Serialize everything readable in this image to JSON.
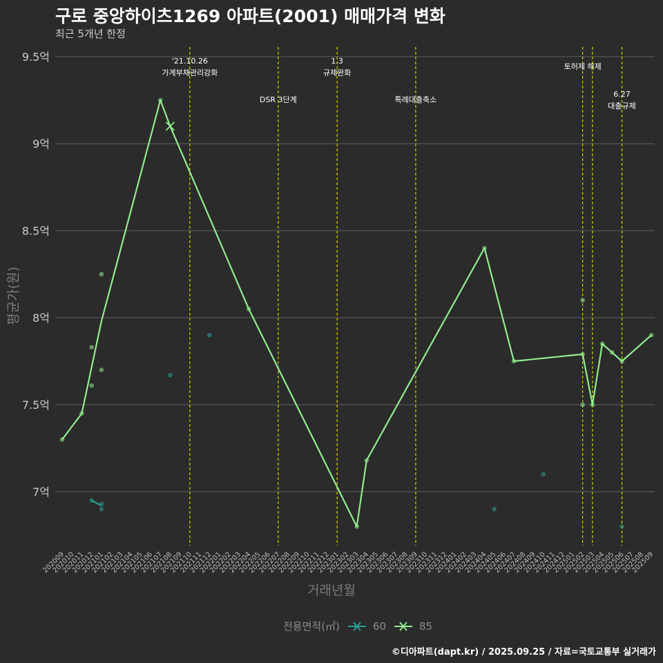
{
  "chart_data": {
    "type": "line",
    "title": "구로 중앙하이츠1269 아파트(2001) 매매가격 변화",
    "subtitle": "최근 5개년 한정",
    "xlabel": "거래년월",
    "ylabel": "평균가(원)",
    "caption": "©디아파트(dapt.kr) / 2025.09.25 / 자료=국토교통부 실거래가",
    "legend_title": "전용면적(㎡)",
    "ylim": [
      6.8,
      9.5
    ],
    "y_ticks": [
      7,
      7.5,
      8,
      8.5,
      9,
      9.5
    ],
    "y_tick_labels": [
      "7억",
      "7.5억",
      "8억",
      "8.5억",
      "9억",
      "9.5억"
    ],
    "x_categories": [
      "202009",
      "202010",
      "202011",
      "202012",
      "202101",
      "202102",
      "202103",
      "202104",
      "202105",
      "202106",
      "202107",
      "202108",
      "202109",
      "202110",
      "202111",
      "202112",
      "202201",
      "202202",
      "202203",
      "202204",
      "202205",
      "202206",
      "202207",
      "202208",
      "202209",
      "202210",
      "202211",
      "202212",
      "202301",
      "202302",
      "202303",
      "202304",
      "202305",
      "202306",
      "202307",
      "202308",
      "202309",
      "202310",
      "202311",
      "202312",
      "202401",
      "202402",
      "202403",
      "202404",
      "202405",
      "202406",
      "202407",
      "202408",
      "202409",
      "202410",
      "202411",
      "202412",
      "202501",
      "202502",
      "202503",
      "202504",
      "202505",
      "202506",
      "202507",
      "202508",
      "202509"
    ],
    "series": [
      {
        "name": "60",
        "color": "#2aa198",
        "line": [
          [
            "202012",
            6.95
          ],
          [
            "202101",
            6.92
          ]
        ],
        "points": [
          [
            "202012",
            6.95
          ],
          [
            "202101",
            6.93
          ],
          [
            "202101",
            6.9
          ],
          [
            "202108",
            7.67
          ],
          [
            "202112",
            7.9
          ],
          [
            "202405",
            6.9
          ],
          [
            "202410",
            7.1
          ],
          [
            "202506",
            6.8
          ]
        ]
      },
      {
        "name": "85",
        "color": "#90ee90",
        "line": [
          [
            "202009",
            7.3
          ],
          [
            "202011",
            7.45
          ],
          [
            "202101",
            7.98
          ],
          [
            "202107",
            9.25
          ],
          [
            "202108",
            9.1
          ],
          [
            "202204",
            8.05
          ],
          [
            "202303",
            6.8
          ],
          [
            "202304",
            7.18
          ],
          [
            "202404",
            8.4
          ],
          [
            "202407",
            7.75
          ],
          [
            "202502",
            7.79
          ],
          [
            "202503",
            7.5
          ],
          [
            "202504",
            7.85
          ],
          [
            "202505",
            7.8
          ],
          [
            "202506",
            7.75
          ],
          [
            "202509",
            7.9
          ]
        ],
        "points": [
          [
            "202009",
            7.3
          ],
          [
            "202011",
            7.45
          ],
          [
            "202012",
            7.83
          ],
          [
            "202012",
            7.61
          ],
          [
            "202101",
            8.25
          ],
          [
            "202101",
            7.7
          ],
          [
            "202107",
            9.25
          ],
          [
            "202204",
            8.05
          ],
          [
            "202303",
            6.8
          ],
          [
            "202304",
            7.18
          ],
          [
            "202404",
            8.4
          ],
          [
            "202407",
            7.75
          ],
          [
            "202502",
            8.1
          ],
          [
            "202502",
            7.79
          ],
          [
            "202502",
            7.5
          ],
          [
            "202503",
            7.5
          ],
          [
            "202504",
            7.85
          ],
          [
            "202505",
            7.8
          ],
          [
            "202506",
            7.75
          ],
          [
            "202509",
            7.9
          ]
        ],
        "cross_markers": [
          [
            "202108",
            9.1
          ]
        ]
      }
    ],
    "annotations": [
      {
        "x": "202110",
        "text": [
          "'21.10.26",
          "가계부채관리강화"
        ],
        "level": 0
      },
      {
        "x": "202207",
        "text": [
          "DSR 3단계"
        ],
        "level": 1
      },
      {
        "x": "202301",
        "text": [
          "1.3",
          "규제완화"
        ],
        "level": 0
      },
      {
        "x": "202309",
        "text": [
          "특례대출축소"
        ],
        "level": 1
      },
      {
        "x": "202502",
        "text": [
          "토허제 해제"
        ],
        "level": 0
      },
      {
        "x": "202503",
        "text": [],
        "level": 0
      },
      {
        "x": "202506",
        "text": [
          "6.27",
          "대출규제"
        ],
        "level": 2
      }
    ]
  }
}
